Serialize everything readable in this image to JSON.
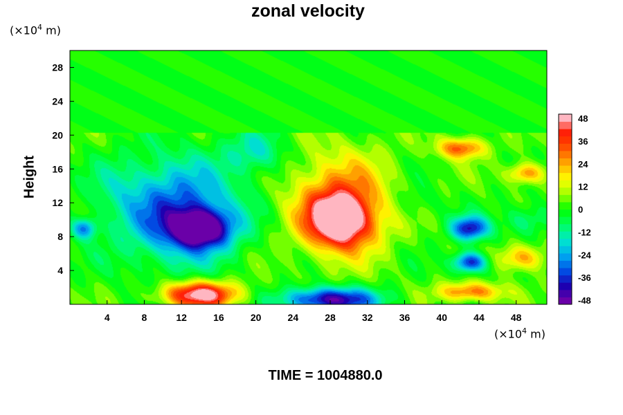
{
  "chart_data": {
    "type": "heatmap",
    "title": "zonal velocity",
    "ylabel": "Height",
    "xlabel": "",
    "x_unit_base": "(×10",
    "x_unit_exp": "4",
    "x_unit_tail": " m)",
    "y_unit_base": "(×10",
    "y_unit_exp": "4",
    "y_unit_tail": " m)",
    "xlim": [
      0,
      51.3
    ],
    "ylim": [
      0,
      30
    ],
    "x_ticks": [
      4,
      8,
      12,
      16,
      20,
      24,
      28,
      32,
      36,
      40,
      44,
      48
    ],
    "y_ticks": [
      4,
      8,
      12,
      16,
      20,
      24,
      28
    ],
    "colorbar": {
      "range": [
        -52,
        52
      ],
      "ticks": [
        48,
        36,
        24,
        12,
        0,
        -12,
        -24,
        -36,
        -48
      ],
      "palette": [
        "#6a00a8",
        "#1a00b0",
        "#0050e6",
        "#00aaf0",
        "#00e8cc",
        "#00ff60",
        "#00ff00",
        "#a0ff00",
        "#ffff00",
        "#ffaa00",
        "#ff5500",
        "#ff1a00",
        "#ffb6c1"
      ]
    },
    "regions": [
      {
        "x": 14,
        "y": 9,
        "value": -50,
        "sx": 3.2,
        "sy": 2.2
      },
      {
        "x": 11.5,
        "y": 11,
        "value": -36,
        "sx": 6.5,
        "sy": 6
      },
      {
        "x": 20,
        "y": 18,
        "value": -18,
        "sx": 3,
        "sy": 2.5
      },
      {
        "x": 29,
        "y": 10,
        "value": 52,
        "sx": 3.2,
        "sy": 3
      },
      {
        "x": 29,
        "y": 12,
        "value": 28,
        "sx": 5.5,
        "sy": 6
      },
      {
        "x": 28,
        "y": 0.6,
        "value": -50,
        "sx": 5,
        "sy": 1.4
      },
      {
        "x": 14,
        "y": 1.2,
        "value": 52,
        "sx": 4,
        "sy": 1.5
      },
      {
        "x": 43,
        "y": 9,
        "value": -42,
        "sx": 2,
        "sy": 1.4
      },
      {
        "x": 43,
        "y": 5,
        "value": -44,
        "sx": 1.8,
        "sy": 1.2
      },
      {
        "x": 42,
        "y": 18.5,
        "value": 32,
        "sx": 2.5,
        "sy": 1.2
      },
      {
        "x": 49,
        "y": 15.5,
        "value": 28,
        "sx": 2,
        "sy": 1.2
      },
      {
        "x": 48.5,
        "y": 5.5,
        "value": 26,
        "sx": 2.5,
        "sy": 1.5
      },
      {
        "x": 1.5,
        "y": 9,
        "value": -30,
        "sx": 1.3,
        "sy": 1.2
      },
      {
        "x": 49,
        "y": 10,
        "value": -15,
        "sx": 2.5,
        "sy": 1.8
      },
      {
        "x": 37,
        "y": 12,
        "value": -8,
        "sx": 2.5,
        "sy": 2
      },
      {
        "x": 5,
        "y": 14,
        "value": -6,
        "sx": 3,
        "sy": 3
      },
      {
        "x": 43,
        "y": 1.5,
        "value": 30,
        "sx": 3.5,
        "sy": 1.1
      }
    ],
    "upper_layer": {
      "from_height": 20.3,
      "value": 0
    },
    "annotation_time": "TIME = 1004880.0"
  }
}
